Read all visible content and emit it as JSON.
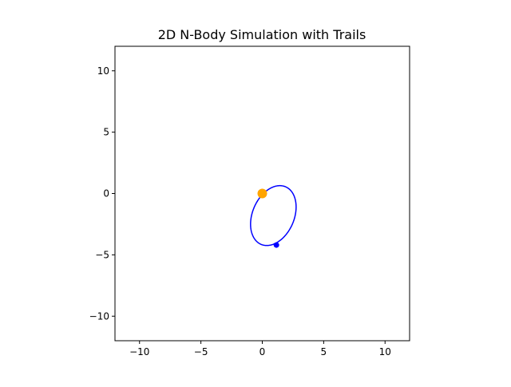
{
  "figure": {
    "title": "2D N-Body Simulation with Trails",
    "colors": {
      "trail": "#0000ff",
      "star": "#ffa500",
      "planet": "#0000ff",
      "axes": "#000000"
    }
  },
  "chart_data": {
    "type": "scatter",
    "title": "2D N-Body Simulation with Trails",
    "xlabel": "",
    "ylabel": "",
    "xlim": [
      -12,
      12
    ],
    "ylim": [
      -12,
      12
    ],
    "xticks": [
      -10,
      -5,
      0,
      5,
      10
    ],
    "yticks": [
      -10,
      -5,
      0,
      5,
      10
    ],
    "xtick_labels": [
      "−10",
      "−5",
      "0",
      "5",
      "10"
    ],
    "ytick_labels": [
      "−10",
      "−5",
      "0",
      "5",
      "10"
    ],
    "grid": false,
    "legend": "none",
    "bodies": [
      {
        "x": 0.0,
        "y": 0.0,
        "color": "#ffa500",
        "size": "large"
      },
      {
        "x": 1.15,
        "y": -4.2,
        "color": "#0000ff",
        "size": "small"
      }
    ],
    "trail": {
      "color": "#0000ff",
      "center": [
        0.9,
        -1.8
      ],
      "semi_major": 2.55,
      "semi_minor": 1.7,
      "rotation_deg": 23
    }
  }
}
